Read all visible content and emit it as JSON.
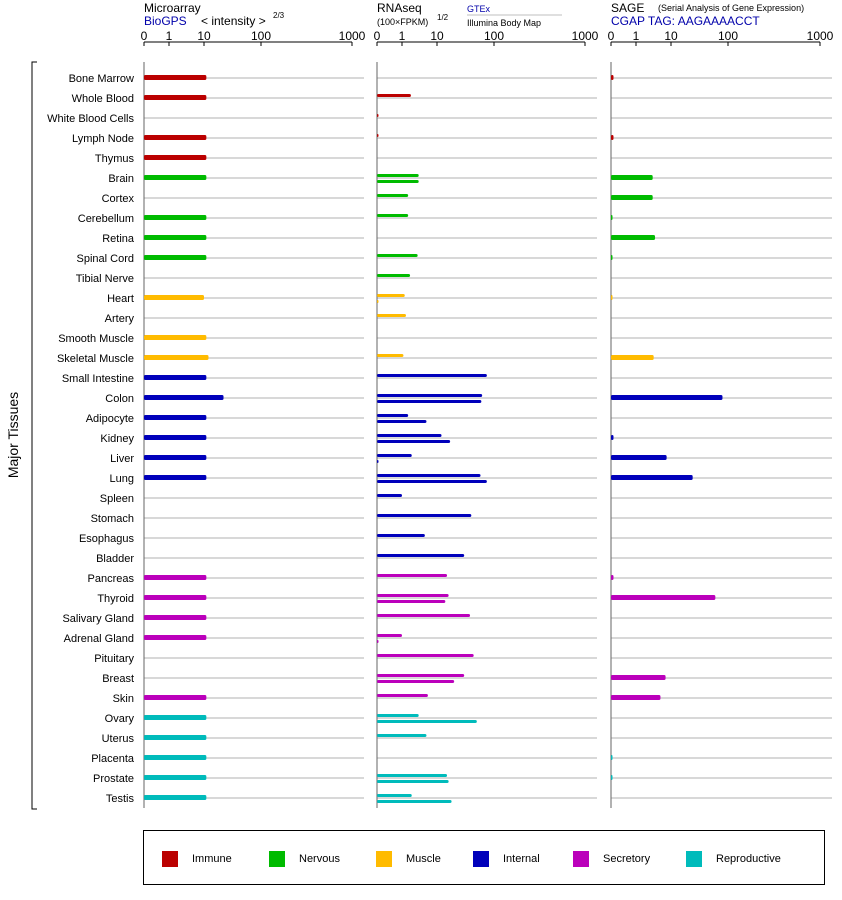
{
  "panels": {
    "microarray": {
      "title": "Microarray",
      "subtitle": "BioGPS",
      "scale_label": "< intensity >",
      "scale_exp": "2/3",
      "max": 1000,
      "ticks": [
        "0",
        "1",
        "10",
        "100",
        "1000"
      ]
    },
    "rnaseq": {
      "title": "RNAseq",
      "scale_label": "(100×FPKM)",
      "scale_exp": "1/2",
      "source_1": "GTEx",
      "source_2": "Illumina Body Map",
      "max": 1000,
      "ticks": [
        "0",
        "1",
        "10",
        "100",
        "1000"
      ]
    },
    "sage": {
      "title": "SAGE",
      "note": "(Serial Analysis of Gene Expression)",
      "subtitle": "CGAP TAG: AAGAAAACCT",
      "max": 1000,
      "ticks": [
        "0",
        "1",
        "10",
        "100",
        "1000"
      ]
    }
  },
  "ylabel": "Major Tissues",
  "colors": {
    "Immune": "#bb0000",
    "Nervous": "#00bb00",
    "Muscle": "#ffbb00",
    "Internal": "#0000bb",
    "Secretory": "#bb00bb",
    "Reproductive": "#00bbbb"
  },
  "legend": [
    {
      "label": "Immune",
      "color": "#bb0000"
    },
    {
      "label": "Nervous",
      "color": "#00bb00"
    },
    {
      "label": "Muscle",
      "color": "#ffbb00"
    },
    {
      "label": "Internal",
      "color": "#0000bb"
    },
    {
      "label": "Secretory",
      "color": "#bb00bb"
    },
    {
      "label": "Reproductive",
      "color": "#00bbbb"
    }
  ],
  "chart_data": {
    "type": "bar",
    "orientation": "horizontal",
    "scale": "power (microarray ^2/3, RNAseq ^1/2, SAGE)",
    "xlim": [
      0,
      1000
    ],
    "categories": [
      "Bone Marrow",
      "Whole Blood",
      "White Blood Cells",
      "Lymph Node",
      "Thymus",
      "Brain",
      "Cortex",
      "Cerebellum",
      "Retina",
      "Spinal Cord",
      "Tibial Nerve",
      "Heart",
      "Artery",
      "Smooth Muscle",
      "Skeletal Muscle",
      "Small Intestine",
      "Colon",
      "Adipocyte",
      "Kidney",
      "Liver",
      "Lung",
      "Spleen",
      "Stomach",
      "Esophagus",
      "Bladder",
      "Pancreas",
      "Thyroid",
      "Salivary Gland",
      "Adrenal Gland",
      "Pituitary",
      "Breast",
      "Skin",
      "Ovary",
      "Uterus",
      "Placenta",
      "Prostate",
      "Testis"
    ],
    "groups": [
      "Immune",
      "Immune",
      "Immune",
      "Immune",
      "Immune",
      "Nervous",
      "Nervous",
      "Nervous",
      "Nervous",
      "Nervous",
      "Nervous",
      "Muscle",
      "Muscle",
      "Muscle",
      "Muscle",
      "Internal",
      "Internal",
      "Internal",
      "Internal",
      "Internal",
      "Internal",
      "Internal",
      "Internal",
      "Internal",
      "Internal",
      "Secretory",
      "Secretory",
      "Secretory",
      "Secretory",
      "Secretory",
      "Secretory",
      "Secretory",
      "Reproductive",
      "Reproductive",
      "Reproductive",
      "Reproductive",
      "Reproductive"
    ],
    "series": [
      {
        "name": "Microarray",
        "values": [
          11,
          11,
          null,
          11,
          11,
          11,
          null,
          11,
          11,
          11,
          null,
          10,
          null,
          11,
          12,
          11,
          22,
          11,
          11,
          11,
          11,
          null,
          null,
          null,
          null,
          11,
          11,
          11,
          11,
          null,
          null,
          11,
          11,
          11,
          11,
          11,
          11
        ]
      },
      {
        "name": "RNAseq GTEx",
        "values": [
          null,
          null,
          null,
          null,
          null,
          null,
          null,
          null,
          null,
          null,
          null,
          null,
          null,
          null,
          null,
          null,
          null,
          null,
          null,
          null,
          null,
          null,
          null,
          null,
          null,
          null,
          null,
          null,
          null,
          null,
          null,
          null,
          null,
          null,
          null,
          null,
          null
        ]
      },
      {
        "name": "RNAseq Illumina Body Map",
        "values": [
          null,
          null,
          null,
          null,
          null,
          null,
          null,
          null,
          null,
          null,
          null,
          null,
          null,
          null,
          null,
          null,
          null,
          null,
          null,
          null,
          null,
          null,
          null,
          null,
          null,
          null,
          null,
          null,
          null,
          null,
          null,
          null,
          null,
          null,
          null,
          null,
          null
        ]
      },
      {
        "name": "SAGE",
        "values": [
          0.1,
          null,
          null,
          0.1,
          null,
          3,
          3,
          0.05,
          3.5,
          0.05,
          null,
          0.02,
          null,
          null,
          3.2,
          null,
          80,
          null,
          0.1,
          7.5,
          24,
          null,
          null,
          null,
          null,
          0.1,
          60,
          null,
          null,
          null,
          7,
          5,
          null,
          null,
          0.05,
          0.05,
          null
        ]
      }
    ]
  }
}
